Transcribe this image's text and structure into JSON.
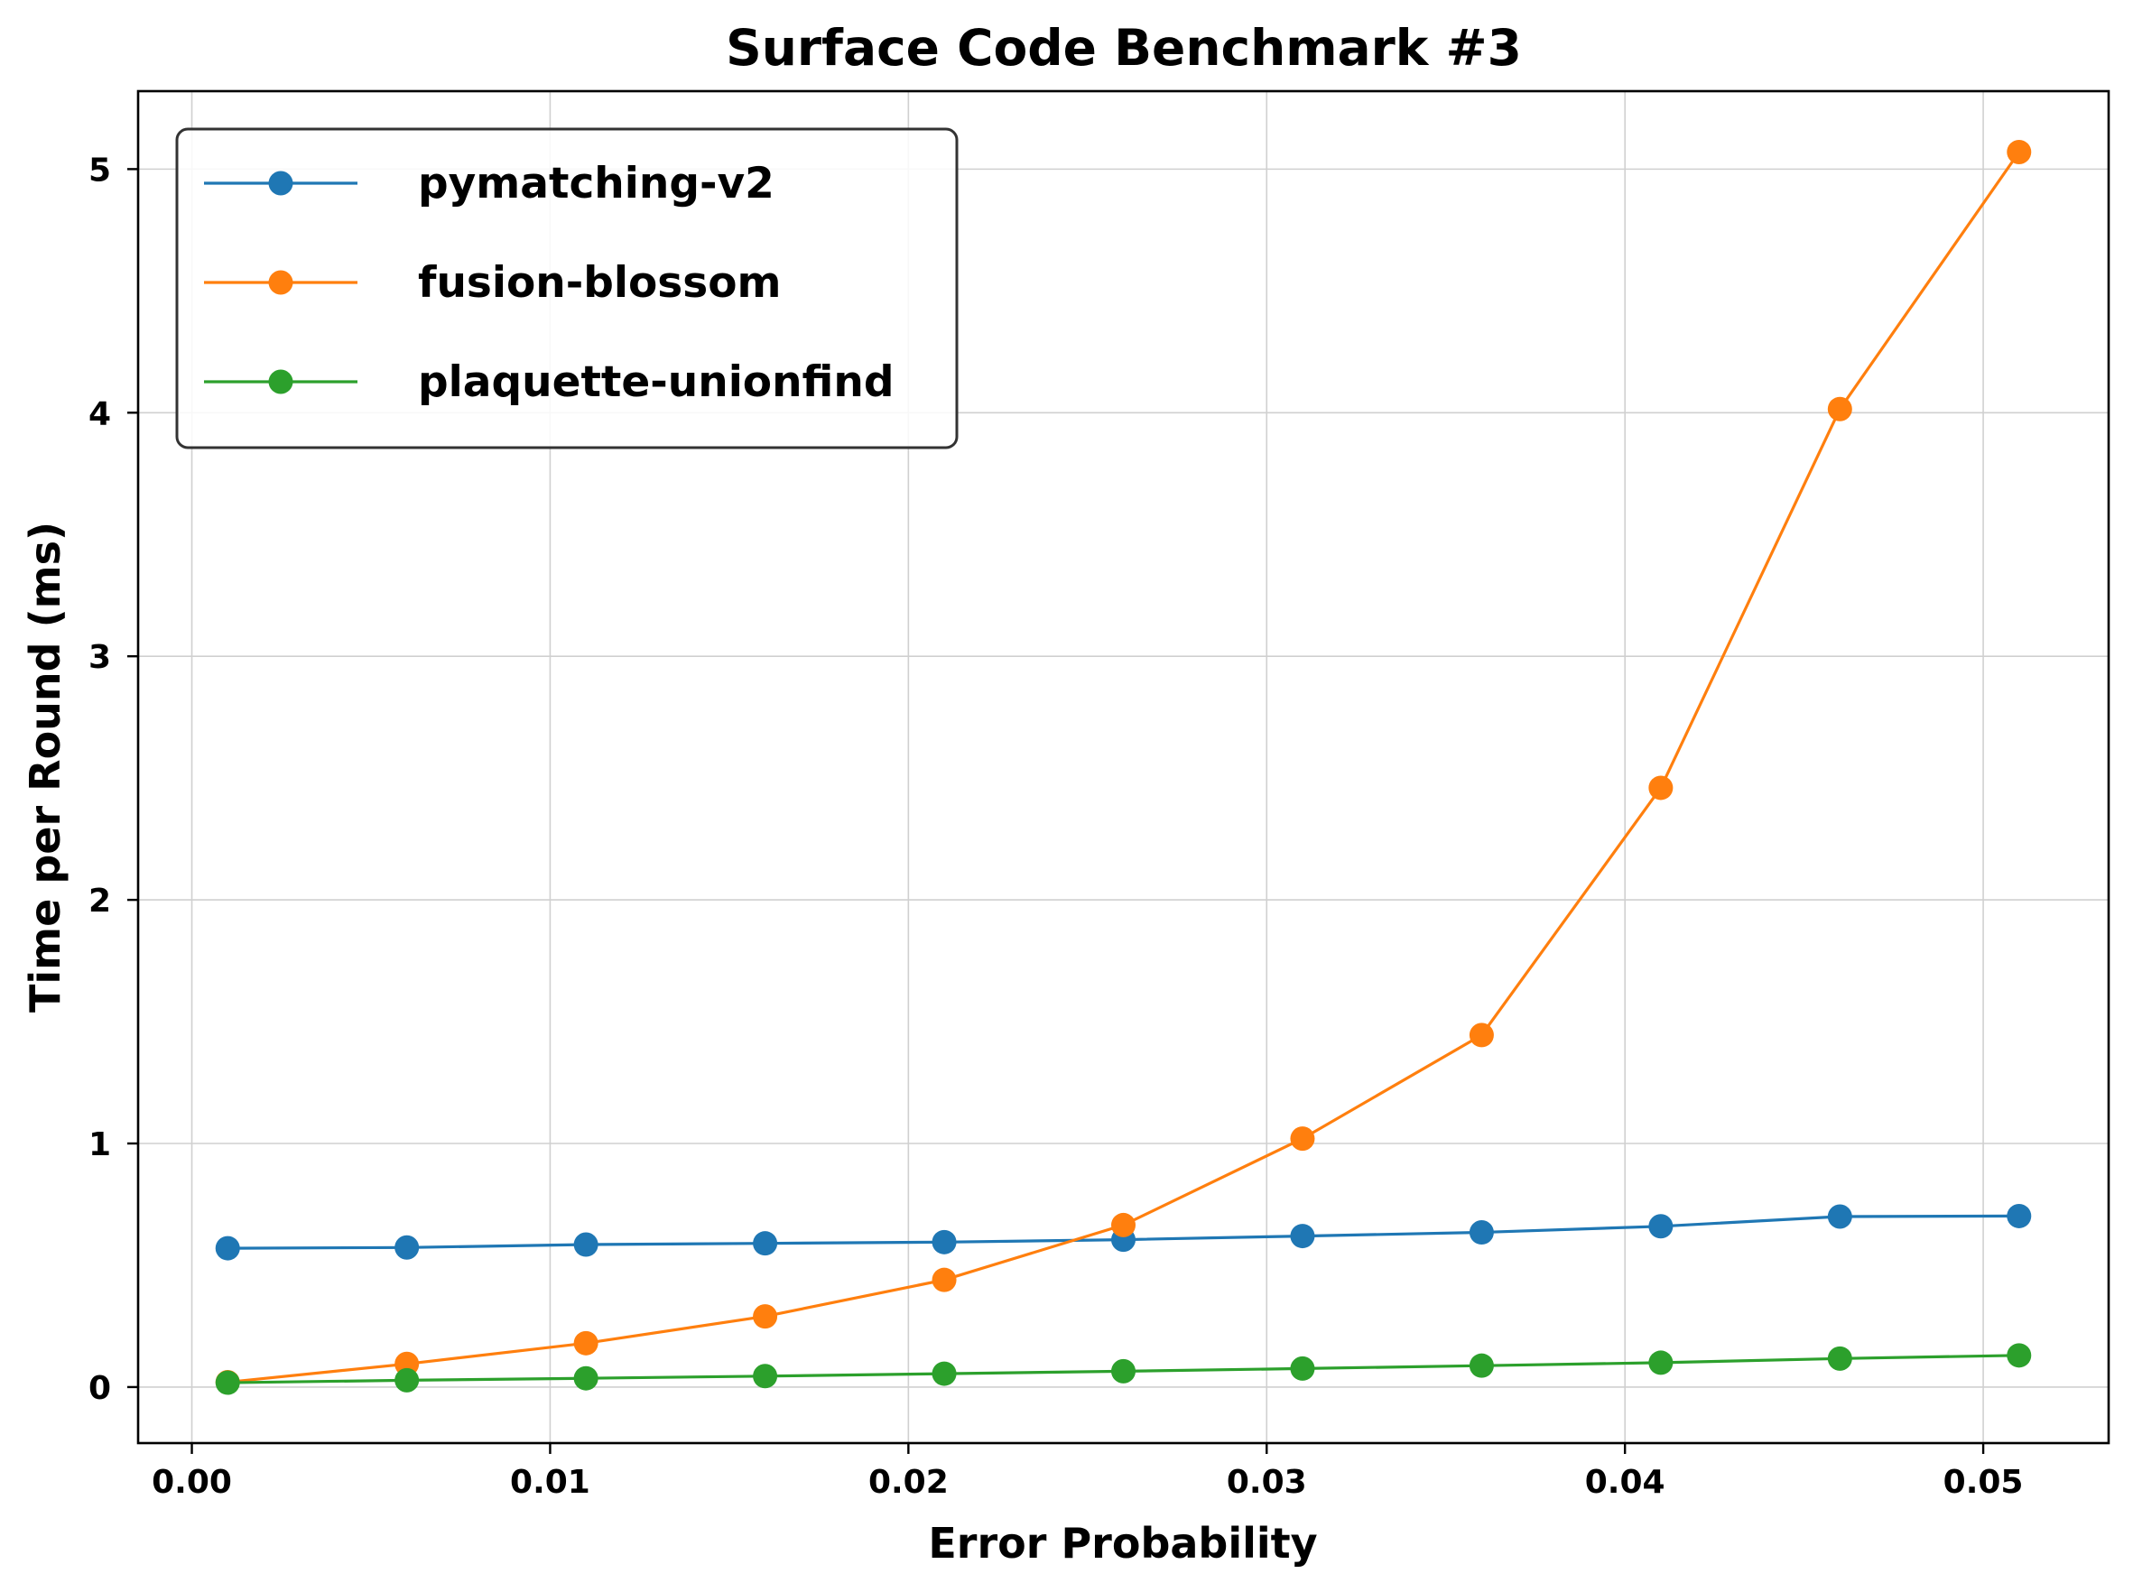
{
  "chart_data": {
    "type": "line",
    "title": "Surface Code Benchmark #3",
    "xlabel": "Error Probability",
    "ylabel": "Time per Round (ms)",
    "xlim": [
      -0.0015,
      0.0535
    ],
    "ylim": [
      -0.23,
      5.32
    ],
    "xticks": [
      0.0,
      0.01,
      0.02,
      0.03,
      0.04,
      0.05
    ],
    "xtick_labels": [
      "0.00",
      "0.01",
      "0.02",
      "0.03",
      "0.04",
      "0.05"
    ],
    "yticks": [
      0,
      1,
      2,
      3,
      4,
      5
    ],
    "ytick_labels": [
      "0",
      "1",
      "2",
      "3",
      "4",
      "5"
    ],
    "grid": true,
    "legend_position": "top-left",
    "x": [
      0.001,
      0.006,
      0.011,
      0.016,
      0.021,
      0.026,
      0.031,
      0.036,
      0.041,
      0.046,
      0.051
    ],
    "series": [
      {
        "name": "pymatching-v2",
        "color": "#1f77b4",
        "values": [
          0.57,
          0.573,
          0.585,
          0.59,
          0.595,
          0.605,
          0.62,
          0.635,
          0.66,
          0.7,
          0.702
        ]
      },
      {
        "name": "fusion-blossom",
        "color": "#ff7f0e",
        "values": [
          0.02,
          0.095,
          0.18,
          0.29,
          0.44,
          0.665,
          1.02,
          1.445,
          2.46,
          4.015,
          5.07
        ]
      },
      {
        "name": "plaquette-unionfind",
        "color": "#2ca02c",
        "values": [
          0.018,
          0.028,
          0.036,
          0.045,
          0.055,
          0.065,
          0.076,
          0.088,
          0.1,
          0.117,
          0.13
        ]
      }
    ]
  }
}
